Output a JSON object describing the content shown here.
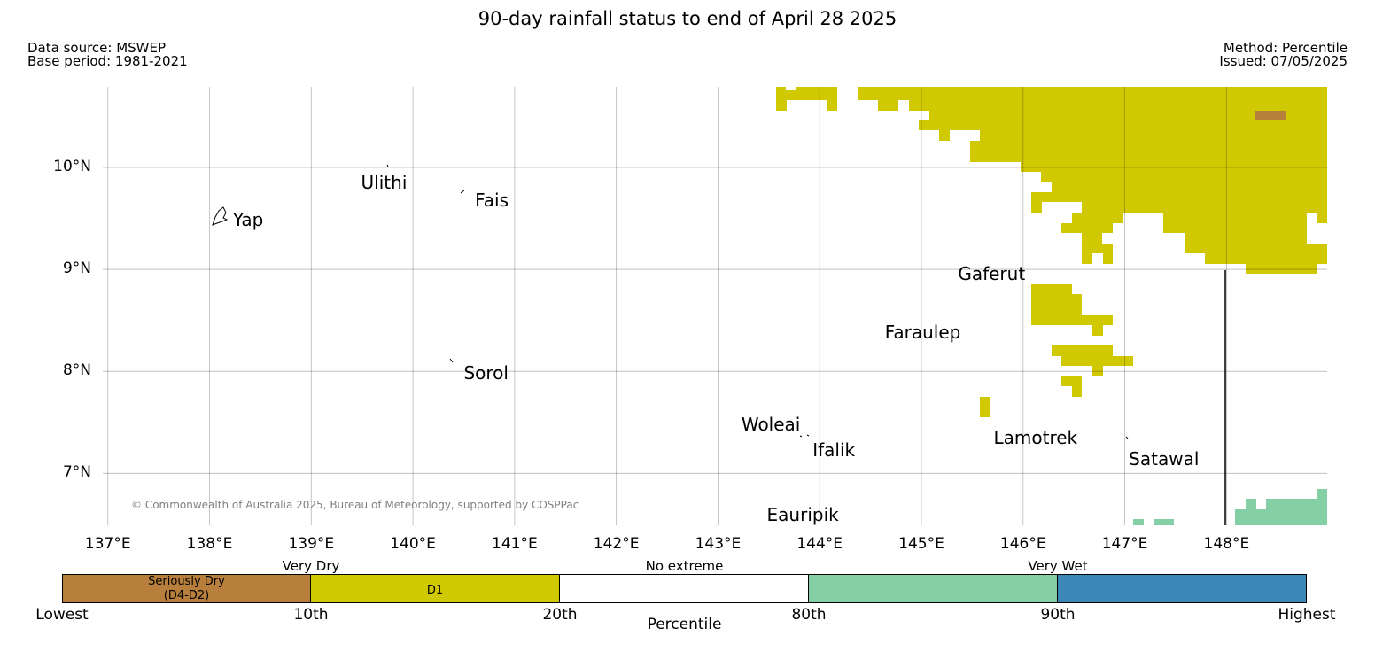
{
  "title": "90-day rainfall status to end of April 28 2025",
  "meta_left": [
    "Data source: MSWEP",
    "Base period: 1981-2021"
  ],
  "meta_right": [
    "Method: Percentile",
    "Issued: 07/05/2025"
  ],
  "map": {
    "lon_range": [
      136.95,
      148.99
    ],
    "lat_range": [
      6.49,
      10.79
    ],
    "lon_ticks": [
      137,
      138,
      139,
      140,
      141,
      142,
      143,
      144,
      145,
      146,
      147,
      148
    ],
    "lon_tick_labels": [
      "137°E",
      "138°E",
      "139°E",
      "140°E",
      "141°E",
      "142°E",
      "143°E",
      "144°E",
      "145°E",
      "146°E",
      "147°E",
      "148°E"
    ],
    "lat_ticks": [
      10,
      9,
      8,
      7
    ],
    "lat_tick_labels": [
      "10°N",
      "9°N",
      "8°N",
      "7°N"
    ],
    "grid": true,
    "colors": {
      "d4_d2": "#b87f3c",
      "d1": "#d0c800",
      "no_extreme": "#ffffff",
      "very_wet_1": "#84cfa5",
      "very_wet_2": "#3a87b8",
      "grid": "#bbbbbb",
      "coast": "#000000"
    },
    "places": [
      {
        "name": "Yap",
        "lon": 138.23,
        "lat": 9.49
      },
      {
        "name": "Ulithi",
        "lon": 139.49,
        "lat": 9.85
      },
      {
        "name": "Fais",
        "lon": 140.61,
        "lat": 9.68
      },
      {
        "name": "Gaferut",
        "lon": 145.36,
        "lat": 8.96
      },
      {
        "name": "Faraulep",
        "lon": 144.64,
        "lat": 8.38
      },
      {
        "name": "Sorol",
        "lon": 140.5,
        "lat": 7.98
      },
      {
        "name": "Woleai",
        "lon": 143.23,
        "lat": 7.48
      },
      {
        "name": "Ifalik",
        "lon": 143.93,
        "lat": 7.23
      },
      {
        "name": "Lamotrek",
        "lon": 145.71,
        "lat": 7.35
      },
      {
        "name": "Satawal",
        "lon": 147.04,
        "lat": 7.14
      },
      {
        "name": "Eauripik",
        "lon": 143.48,
        "lat": 6.59
      }
    ],
    "copyright": "© Commonwealth of Australia 2025, Bureau of Meteorology, supported by COSPPac"
  },
  "legend": {
    "title": "Percentile",
    "group_labels": [
      "Very Dry",
      "No extreme",
      "Very Wet"
    ],
    "classes": [
      {
        "label": "Seriously Dry\n(D4-D2)",
        "color": "#b87f3c"
      },
      {
        "label": "D1",
        "color": "#d0c800"
      },
      {
        "label": "",
        "color": "#ffffff"
      },
      {
        "label": "",
        "color": "#84cfa5"
      },
      {
        "label": "",
        "color": "#3a87b8"
      }
    ],
    "boundary_labels": [
      "Lowest",
      "10th",
      "20th",
      "80th",
      "90th",
      "Highest"
    ]
  }
}
